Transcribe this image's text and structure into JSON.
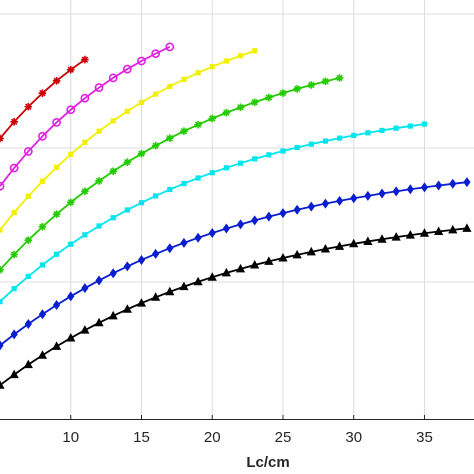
{
  "chart_data": {
    "type": "line",
    "xlabel": "Lc/cm",
    "ylabel": "",
    "title": "",
    "xlim": [
      5,
      38.5
    ],
    "ylim": [
      0,
      1
    ],
    "grid": true,
    "x_ticks": [
      10,
      15,
      20,
      25,
      30,
      35
    ],
    "x_tick_labels": [
      "10",
      "15",
      "20",
      "25",
      "30",
      "35"
    ],
    "series": [
      {
        "color": "#cc0000",
        "marker": "star",
        "x_start": 5,
        "x_end": 11,
        "x_step": 1,
        "y_start": 0.73,
        "y_end": 0.928,
        "rise_rate": 0.1
      },
      {
        "color": "#e020e0",
        "marker": "circle",
        "x_start": 5,
        "x_end": 17,
        "x_step": 1,
        "y_start": 0.61,
        "y_end": 0.96,
        "rise_rate": 0.09
      },
      {
        "color": "#f0f000",
        "marker": "square",
        "x_start": 5,
        "x_end": 23,
        "x_step": 1,
        "y_start": 0.5,
        "y_end": 0.95,
        "rise_rate": 0.075
      },
      {
        "color": "#22cc00",
        "marker": "asterisk",
        "x_start": 5,
        "x_end": 29,
        "x_step": 1,
        "y_start": 0.4,
        "y_end": 0.882,
        "rise_rate": 0.065
      },
      {
        "color": "#00e5ee",
        "marker": "square",
        "x_start": 5,
        "x_end": 35,
        "x_step": 1,
        "y_start": 0.32,
        "y_end": 0.766,
        "rise_rate": 0.065
      },
      {
        "color": "#0a1ed0",
        "marker": "diamond",
        "x_start": 5,
        "x_end": 38.5,
        "x_step": 1,
        "y_start": 0.21,
        "y_end": 0.622,
        "rise_rate": 0.06
      },
      {
        "color": "#000000",
        "marker": "triangle",
        "x_start": 5,
        "x_end": 38.5,
        "x_step": 1,
        "y_start": 0.11,
        "y_end": 0.506,
        "rise_rate": 0.06
      }
    ]
  }
}
